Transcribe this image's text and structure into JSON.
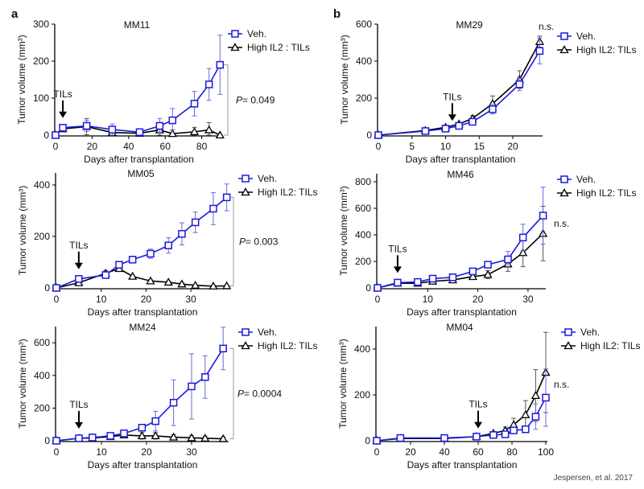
{
  "figure": {
    "panel_letters": [
      "a",
      "b"
    ],
    "credit": "Jespersen, et al. 2017"
  },
  "colors": {
    "veh": "#1a1adf",
    "high": "#000000",
    "veh_error": "#6a6ad8",
    "high_error": "#555555",
    "bracket": "#999999"
  },
  "chart_data": [
    {
      "type": "line",
      "title": "MM11",
      "panel_letter": "a",
      "xlabel": "Days after transplantation",
      "ylabel": "Tumor volume (mm³)",
      "xticks": [
        0,
        20,
        40,
        60,
        80
      ],
      "yticks": [
        0,
        100,
        200,
        300
      ],
      "ylim": [
        0,
        300
      ],
      "arrow": {
        "label": "TILs",
        "x": 4
      },
      "annotation": {
        "p_prefix": "P",
        "text": "= 0.049"
      },
      "series": [
        {
          "name": "Veh.",
          "marker": "square",
          "x": [
            0,
            4,
            17,
            31,
            46,
            57,
            64,
            76,
            84,
            90
          ],
          "y": [
            0,
            20,
            25,
            15,
            8,
            25,
            40,
            85,
            137,
            190
          ],
          "error": [
            0,
            5,
            15,
            15,
            5,
            20,
            32,
            33,
            43,
            80
          ]
        },
        {
          "name": "High IL2 : TILs",
          "marker": "triangle",
          "x": [
            0,
            4,
            17,
            31,
            46,
            57,
            64,
            76,
            84,
            90
          ],
          "y": [
            0,
            17,
            23,
            7,
            5,
            14,
            4,
            9,
            14,
            0
          ],
          "error": [
            0,
            5,
            22,
            10,
            3,
            20,
            10,
            12,
            20,
            0
          ]
        }
      ]
    },
    {
      "type": "line",
      "title": "MM29",
      "panel_letter": "b",
      "xlabel": "Days after transplantation",
      "ylabel": "Tumor volume (mm³)",
      "xticks": [
        0,
        5,
        10,
        15,
        20
      ],
      "yticks": [
        0,
        200,
        400,
        600
      ],
      "ylim": [
        0,
        600
      ],
      "arrow": {
        "label": "TILs",
        "x": 11
      },
      "annotation": {
        "p_prefix": "",
        "text": "n.s."
      },
      "series": [
        {
          "name": "Veh.",
          "marker": "square",
          "x": [
            0,
            7,
            10,
            12,
            14,
            17,
            21,
            24
          ],
          "y": [
            0,
            22,
            35,
            50,
            72,
            140,
            275,
            455
          ],
          "error": [
            0,
            5,
            5,
            5,
            8,
            25,
            35,
            70
          ]
        },
        {
          "name": "High IL2: TILs",
          "marker": "triangle",
          "x": [
            0,
            7,
            10,
            12,
            14,
            17,
            21,
            24
          ],
          "y": [
            0,
            25,
            42,
            60,
            90,
            170,
            300,
            505
          ],
          "error": [
            0,
            5,
            5,
            8,
            15,
            42,
            48,
            30
          ]
        }
      ]
    },
    {
      "type": "line",
      "title": "MM05",
      "xlabel": "Days after transplantation",
      "ylabel": "Tumor volume (mm³)",
      "xticks": [
        0,
        10,
        20,
        30
      ],
      "yticks": [
        0,
        200,
        400
      ],
      "ylim": [
        0,
        450
      ],
      "arrow": {
        "label": "TILs",
        "x": 5
      },
      "annotation": {
        "p_prefix": "P",
        "text": "= 0.003"
      },
      "series": [
        {
          "name": "Veh.",
          "marker": "square",
          "x": [
            0,
            5,
            11,
            14,
            17,
            21,
            25,
            28,
            31,
            35,
            38
          ],
          "y": [
            0,
            35,
            50,
            90,
            110,
            133,
            165,
            210,
            255,
            308,
            352
          ],
          "error": [
            0,
            5,
            8,
            8,
            8,
            18,
            30,
            43,
            40,
            62,
            52
          ]
        },
        {
          "name": "High IL2: TILs",
          "marker": "triangle",
          "x": [
            0,
            5,
            11,
            14,
            17,
            21,
            25,
            28,
            31,
            35,
            38
          ],
          "y": [
            0,
            20,
            57,
            75,
            45,
            27,
            22,
            15,
            10,
            7,
            8
          ],
          "error": [
            0,
            5,
            10,
            5,
            5,
            5,
            5,
            5,
            3,
            3,
            3
          ]
        }
      ]
    },
    {
      "type": "line",
      "title": "MM46",
      "xlabel": "Days after transplantation",
      "ylabel": "Tumor volume (mm³)",
      "xticks": [
        0,
        10,
        20,
        30
      ],
      "yticks": [
        0,
        200,
        400,
        600,
        800
      ],
      "ylim": [
        0,
        850
      ],
      "arrow": {
        "label": "TILs",
        "x": 4
      },
      "annotation": {
        "p_prefix": "",
        "text": "n.s."
      },
      "series": [
        {
          "name": "Veh.",
          "marker": "square",
          "x": [
            0,
            4,
            8,
            11,
            15,
            19,
            22,
            26,
            29,
            33
          ],
          "y": [
            0,
            40,
            45,
            70,
            80,
            125,
            175,
            215,
            380,
            545
          ],
          "error": [
            0,
            5,
            5,
            8,
            8,
            15,
            15,
            60,
            100,
            215
          ]
        },
        {
          "name": "High IL2: TILs",
          "marker": "triangle",
          "x": [
            0,
            4,
            8,
            11,
            15,
            19,
            22,
            26,
            29,
            33
          ],
          "y": [
            0,
            35,
            35,
            50,
            60,
            85,
            100,
            180,
            265,
            410
          ],
          "error": [
            0,
            5,
            5,
            5,
            5,
            10,
            30,
            55,
            105,
            205
          ]
        }
      ]
    },
    {
      "type": "line",
      "title": "MM24",
      "xlabel": "Days after transplantation",
      "ylabel": "Tumor volume (mm³)",
      "xticks": [
        0,
        10,
        20,
        30
      ],
      "yticks": [
        0,
        200,
        400,
        600
      ],
      "ylim": [
        0,
        700
      ],
      "arrow": {
        "label": "TILs",
        "x": 5
      },
      "annotation": {
        "p_prefix": "P",
        "text": "= 0.0004"
      },
      "series": [
        {
          "name": "Veh.",
          "marker": "square",
          "x": [
            0,
            5,
            8,
            12,
            15,
            19,
            22,
            26,
            30,
            33,
            37
          ],
          "y": [
            0,
            15,
            20,
            30,
            45,
            80,
            120,
            233,
            333,
            390,
            565
          ],
          "error": [
            0,
            5,
            5,
            8,
            10,
            20,
            60,
            140,
            200,
            130,
            130
          ]
        },
        {
          "name": "High IL2: TILs",
          "marker": "triangle",
          "x": [
            0,
            5,
            8,
            12,
            15,
            19,
            22,
            26,
            30,
            33,
            37
          ],
          "y": [
            0,
            15,
            17,
            25,
            35,
            30,
            30,
            22,
            18,
            15,
            12
          ],
          "error": [
            0,
            5,
            5,
            5,
            8,
            20,
            20,
            15,
            15,
            12,
            10
          ]
        }
      ]
    },
    {
      "type": "line",
      "title": "MM04",
      "xlabel": "Days after transplantation",
      "ylabel": "Tumor volume (mm³)",
      "xticks": [
        0,
        20,
        40,
        60,
        80,
        100
      ],
      "yticks": [
        0,
        200,
        400
      ],
      "ylim": [
        0,
        500
      ],
      "arrow": {
        "label": "TILs",
        "x": 60
      },
      "annotation": {
        "p_prefix": "",
        "text": "n.s."
      },
      "series": [
        {
          "name": "Veh.",
          "marker": "square",
          "x": [
            0,
            14,
            40,
            59,
            69,
            76,
            81,
            88,
            94,
            100
          ],
          "y": [
            0,
            12,
            12,
            18,
            25,
            28,
            45,
            50,
            105,
            188
          ],
          "error": [
            0,
            3,
            3,
            5,
            5,
            5,
            8,
            15,
            55,
            125
          ]
        },
        {
          "name": "High IL2: TILs",
          "marker": "triangle",
          "x": [
            0,
            14,
            40,
            59,
            69,
            76,
            81,
            88,
            94,
            100
          ],
          "y": [
            0,
            10,
            10,
            18,
            32,
            45,
            70,
            113,
            197,
            298
          ],
          "error": [
            0,
            3,
            3,
            5,
            8,
            15,
            28,
            62,
            113,
            175
          ]
        }
      ]
    }
  ]
}
